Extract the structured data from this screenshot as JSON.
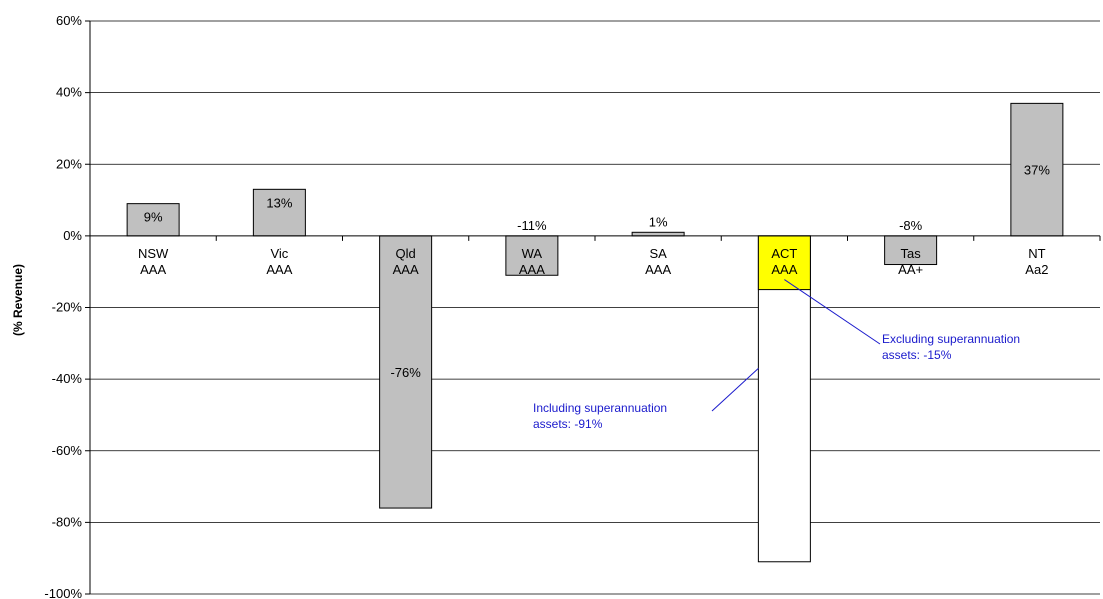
{
  "chart_data": {
    "type": "bar",
    "ylabel": "(% Revenue)",
    "ylim": [
      -100,
      60
    ],
    "yticks": [
      60,
      40,
      20,
      0,
      -20,
      -40,
      -60,
      -80,
      -100
    ],
    "ytick_labels": [
      "60%",
      "40%",
      "20%",
      "0%",
      "-20%",
      "-40%",
      "-60%",
      "-80%",
      "-100%"
    ],
    "grid": true,
    "categories": [
      {
        "state": "NSW",
        "rating": "AAA"
      },
      {
        "state": "Vic",
        "rating": "AAA"
      },
      {
        "state": "Qld",
        "rating": "AAA"
      },
      {
        "state": "WA",
        "rating": "AAA"
      },
      {
        "state": "SA",
        "rating": "AAA"
      },
      {
        "state": "ACT",
        "rating": "AAA"
      },
      {
        "state": "Tas",
        "rating": "AA+"
      },
      {
        "state": "NT",
        "rating": "Aa2"
      }
    ],
    "values": [
      9,
      13,
      -76,
      -11,
      1,
      -15,
      -8,
      37
    ],
    "value_labels": [
      "9%",
      "13%",
      "-76%",
      "-11%",
      "1%",
      "",
      "-8%",
      "37%"
    ],
    "act_including_superannuation": -91,
    "colors": {
      "bar": "#c0c0c0",
      "highlight": "#ffff00",
      "including": "#ffffff",
      "annotation": "#1a1acc"
    },
    "annotations": [
      {
        "line1": "Excluding superannuation",
        "line2": "assets: -15%"
      },
      {
        "line1": "Including superannuation",
        "line2": "assets: -91%"
      }
    ]
  }
}
